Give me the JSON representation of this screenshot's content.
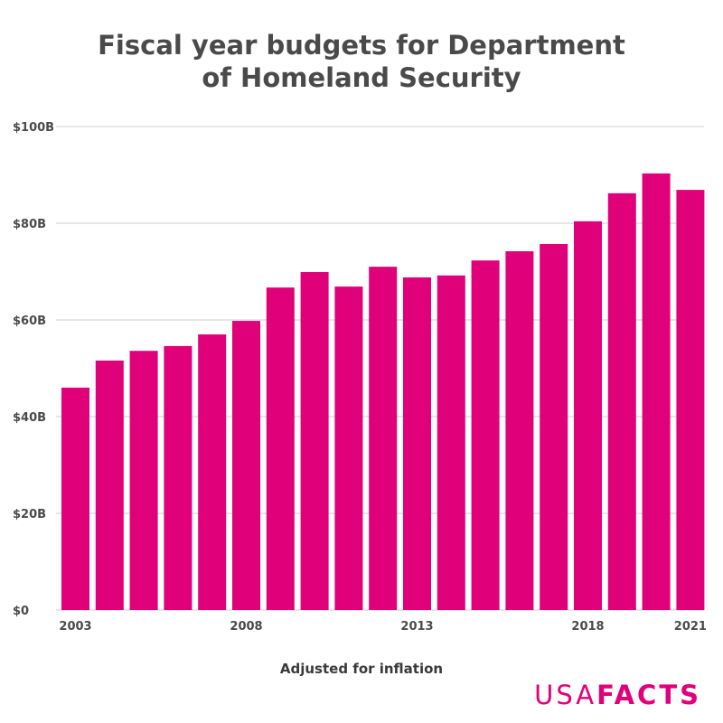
{
  "chart_data": {
    "type": "bar",
    "title": "Fiscal year budgets for Department of Homeland Security",
    "title_lines": [
      "Fiscal year budgets for Department",
      "of Homeland Security"
    ],
    "categories": [
      "2003",
      "2004",
      "2005",
      "2006",
      "2007",
      "2008",
      "2009",
      "2010",
      "2011",
      "2012",
      "2013",
      "2014",
      "2015",
      "2016",
      "2017",
      "2018",
      "2019",
      "2020",
      "2021"
    ],
    "x_tick_labels": [
      "2003",
      "2008",
      "2013",
      "2018",
      "2021"
    ],
    "values": [
      46.0,
      51.6,
      53.6,
      54.6,
      57.0,
      59.8,
      66.7,
      69.9,
      66.9,
      71.0,
      68.8,
      69.2,
      72.3,
      74.2,
      75.7,
      80.4,
      86.2,
      90.3,
      86.9
    ],
    "unit": "billion USD",
    "ylim": [
      0,
      100
    ],
    "y_ticks": [
      0,
      20,
      40,
      60,
      80,
      100
    ],
    "y_tick_labels": [
      "$0",
      "$20B",
      "$40B",
      "$60B",
      "$80B",
      "$100B"
    ],
    "xlabel": "Adjusted for inflation",
    "ylabel": "",
    "grid": true,
    "bar_color": "#e0007a"
  },
  "logo": {
    "text_thin": "USA",
    "text_bold": "FACTS",
    "color": "#e0007a"
  }
}
